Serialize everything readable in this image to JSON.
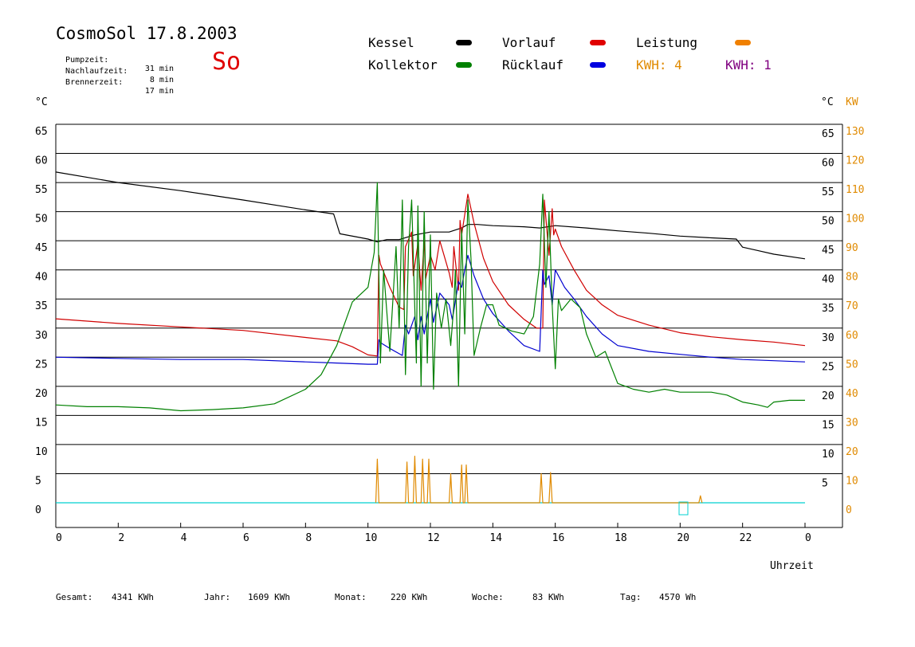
{
  "header": {
    "title": "CosmoSol 17.8.2003",
    "day": "So",
    "info": [
      {
        "label": "Pumpzeit:",
        "value": "31 min"
      },
      {
        "label": "Nachlaufzeit:",
        "value": "8 min"
      },
      {
        "label": "Brennerzeit:",
        "value": "17 min"
      }
    ]
  },
  "legend": {
    "kessel": {
      "label": "Kessel",
      "color": "#000000"
    },
    "kollektor": {
      "label": "Kollektor",
      "color": "#008000"
    },
    "vorlauf": {
      "label": "Vorlauf",
      "color": "#e00000"
    },
    "ruecklauf": {
      "label": "Rücklauf",
      "color": "#0000e0"
    },
    "leistung": {
      "label": "Leistung",
      "color": "#f08000"
    },
    "kwh1": {
      "label": "KWH: 4",
      "color": "#e08a00"
    },
    "kwh2": {
      "label": "KWH: 1",
      "color": "#800080"
    }
  },
  "units": {
    "left": "°C",
    "right_c": "°C",
    "right_kw": "KW"
  },
  "footer": {
    "gesamt": {
      "label": "Gesamt:",
      "value": "4341 KWh"
    },
    "jahr": {
      "label": "Jahr:",
      "value": "1609 KWh"
    },
    "monat": {
      "label": "Monat:",
      "value": "220 KWh"
    },
    "woche": {
      "label": "Woche:",
      "value": "83 KWh"
    },
    "tag": {
      "label": "Tag:",
      "value": "4570 Wh"
    }
  },
  "chart_data": {
    "type": "line",
    "xlabel": "Uhrzeit",
    "ylabel": "°C",
    "y2label": "KW",
    "xlim": [
      0,
      24
    ],
    "ylim": [
      0,
      65
    ],
    "y2lim": [
      0,
      130
    ],
    "x_ticks": [
      "0",
      "2",
      "4",
      "6",
      "8",
      "10",
      "12",
      "14",
      "16",
      "18",
      "20",
      "22",
      "0"
    ],
    "y_ticks": [
      "65",
      "60",
      "55",
      "50",
      "45",
      "40",
      "35",
      "30",
      "25",
      "20",
      "15",
      "10",
      "5",
      "0"
    ],
    "y2_ticks": [
      "130",
      "120",
      "110",
      "100",
      "90",
      "80",
      "70",
      "60",
      "50",
      "40",
      "30",
      "20",
      "10",
      "0"
    ],
    "grid": true,
    "series": [
      {
        "name": "Kessel",
        "color": "#000000",
        "x": [
          0,
          2,
          4,
          6,
          8,
          8.9,
          9.1,
          10,
          10.3,
          10.6,
          11,
          11.5,
          12,
          12.6,
          13,
          13.2,
          13.5,
          14,
          15,
          15.5,
          16,
          17,
          18,
          19,
          20,
          21,
          21.8,
          22,
          22.5,
          23,
          24
        ],
        "values": [
          56.8,
          55,
          53.6,
          52,
          50.3,
          49.6,
          46.2,
          45.3,
          44.8,
          45.2,
          45.2,
          46,
          46.5,
          46.5,
          47.2,
          47.8,
          47.8,
          47.6,
          47.4,
          47.2,
          47.6,
          47.2,
          46.7,
          46.3,
          45.8,
          45.5,
          45.3,
          43.9,
          43.3,
          42.7,
          41.9
        ]
      },
      {
        "name": "Vorlauf",
        "color": "#d00000",
        "x": [
          0,
          2,
          4,
          6,
          8,
          9,
          9.5,
          10,
          10.3,
          10.35,
          10.4,
          10.7,
          11,
          11.15,
          11.2,
          11.4,
          11.45,
          11.6,
          11.7,
          11.8,
          11.85,
          12,
          12.15,
          12.3,
          12.6,
          12.7,
          12.75,
          12.9,
          12.95,
          13,
          13.2,
          13.4,
          13.7,
          14,
          14.5,
          15,
          15.4,
          15.6,
          15.65,
          15.8,
          15.9,
          15.95,
          16,
          16.2,
          16.6,
          17,
          17.5,
          18,
          19,
          20,
          21,
          22,
          23,
          24
        ]
      },
      {
        "name": "Rücklauf",
        "color": "#0000d0",
        "x": [
          0,
          2,
          4,
          6,
          8,
          9,
          10,
          10.3,
          10.35,
          10.4,
          10.7,
          11,
          11.1,
          11.2,
          11.3,
          11.5,
          11.6,
          11.7,
          11.8,
          12,
          12.1,
          12.3,
          12.6,
          12.7,
          12.75,
          12.9,
          13,
          13.1,
          13.2,
          13.4,
          13.7,
          14,
          14.5,
          15,
          15.5,
          15.6,
          15.65,
          15.8,
          15.9,
          16,
          16.3,
          16.6,
          17,
          17.5,
          18,
          19,
          20,
          21,
          22,
          23,
          24
        ]
      },
      {
        "name": "Kollektor",
        "color": "#008000",
        "x": [
          0,
          1,
          2,
          3,
          4,
          5,
          6,
          7,
          8,
          8.5,
          9,
          9.5,
          10,
          10.2,
          10.3,
          10.4,
          10.5,
          10.7,
          10.9,
          11,
          11.1,
          11.2,
          11.3,
          11.4,
          11.55,
          11.6,
          11.7,
          11.8,
          11.9,
          12,
          12.1,
          12.2,
          12.35,
          12.5,
          12.65,
          12.75,
          12.8,
          12.9,
          13,
          13.1,
          13.2,
          13.3,
          13.4,
          13.6,
          13.8,
          14,
          14.2,
          14.6,
          15,
          15.3,
          15.5,
          15.6,
          15.7,
          15.8,
          15.9,
          16,
          16.1,
          16.2,
          16.5,
          16.8,
          17,
          17.3,
          17.6,
          18,
          18.5,
          19,
          19.5,
          20,
          20.5,
          21,
          21.5,
          22,
          22.5,
          22.8,
          23,
          23.5,
          24
        ]
      },
      {
        "name": "Leistung",
        "color": "#e08a00",
        "x": [
          10.25,
          10.3,
          10.35,
          11.2,
          11.25,
          11.3,
          11.45,
          11.5,
          11.55,
          11.7,
          11.75,
          11.8,
          11.9,
          11.95,
          12.0,
          12.6,
          12.65,
          12.7,
          12.95,
          13.0,
          13.05,
          13.1,
          13.15,
          13.2,
          15.5,
          15.55,
          15.6,
          15.8,
          15.85,
          15.9,
          20.6,
          20.65,
          20.7
        ]
      }
    ]
  }
}
